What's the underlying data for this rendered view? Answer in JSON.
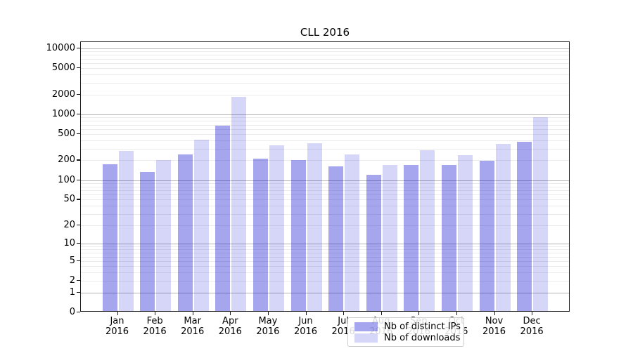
{
  "title": "CLL 2016",
  "colors": {
    "series_dark": "rgba(0,0,210,0.35)",
    "series_light": "rgba(0,0,210,0.16)",
    "gridline_major": "#b4b4b4",
    "gridline_minor": "#ebebeb",
    "spine": "#1a1a1a"
  },
  "legend": {
    "items": [
      {
        "label": "Nb of distinct IPs"
      },
      {
        "label": "Nb of downloads"
      }
    ]
  },
  "chart_data": {
    "type": "bar",
    "title": "CLL 2016",
    "categories": [
      "Jan 2016",
      "Feb 2016",
      "Mar 2016",
      "Apr 2016",
      "May 2016",
      "Jun 2016",
      "Jul 2016",
      "Aug 2016",
      "Sep 2016",
      "Oct 2016",
      "Nov 2016",
      "Dec 2016"
    ],
    "series": [
      {
        "name": "Nb of distinct IPs",
        "values": [
          170,
          130,
          240,
          660,
          210,
          198,
          158,
          118,
          168,
          166,
          192,
          370
        ]
      },
      {
        "name": "Nb of downloads",
        "values": [
          275,
          198,
          405,
          1800,
          330,
          357,
          240,
          165,
          282,
          232,
          350,
          875
        ]
      }
    ],
    "xlabel": "",
    "ylabel": "",
    "yscale": "symlog",
    "yticks": [
      0,
      1,
      2,
      5,
      10,
      20,
      50,
      100,
      200,
      500,
      1000,
      2000,
      5000,
      10000
    ],
    "ylim": [
      0,
      11800
    ],
    "grid": true,
    "legend_position": "lower center"
  }
}
